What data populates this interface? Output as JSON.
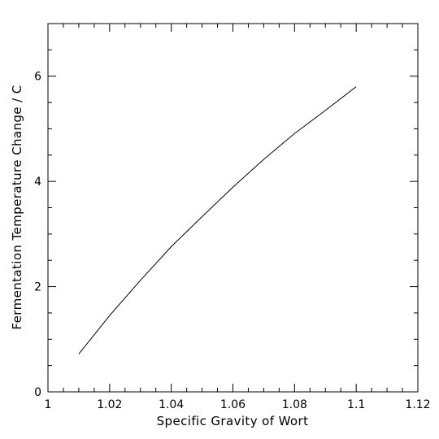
{
  "chart_data": {
    "type": "line",
    "title": "",
    "xlabel": "Specific Gravity of Wort",
    "ylabel": "Fermentation Temperature Change / C",
    "xlim": [
      1.0,
      1.12
    ],
    "ylim": [
      0,
      7
    ],
    "x_major_ticks": [
      1.0,
      1.02,
      1.04,
      1.06,
      1.08,
      1.1,
      1.12
    ],
    "x_tick_labels": [
      "1",
      "1.02",
      "1.04",
      "1.06",
      "1.08",
      "1.1",
      "1.12"
    ],
    "x_minor_step": 0.005,
    "y_major_ticks": [
      0,
      2,
      4,
      6
    ],
    "y_tick_labels": [
      "0",
      "2",
      "4",
      "6"
    ],
    "y_minor_step": 0.5,
    "grid": false,
    "legend": "none",
    "series": [
      {
        "color": "#000000",
        "x": [
          1.01,
          1.02,
          1.03,
          1.04,
          1.05,
          1.06,
          1.07,
          1.08,
          1.09,
          1.1
        ],
        "y": [
          0.72,
          1.45,
          2.12,
          2.76,
          3.33,
          3.89,
          4.42,
          4.91,
          5.35,
          5.8
        ]
      }
    ]
  }
}
